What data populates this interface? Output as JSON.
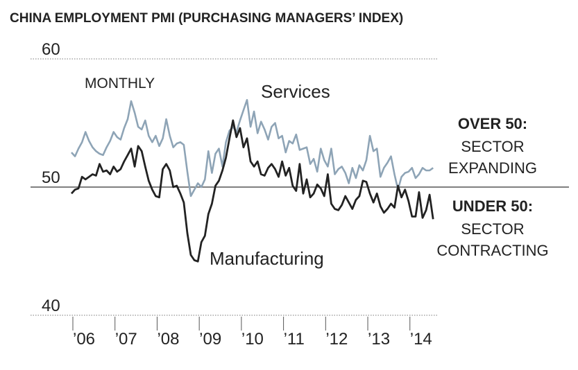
{
  "chart_data": {
    "type": "line",
    "title": "CHINA EMPLOYMENT PMI (PURCHASING MANAGERS’ INDEX)",
    "annotations": [
      "MONTHLY",
      "Services",
      "Manufacturing",
      "OVER 50:",
      "SECTOR",
      "EXPANDING",
      "UNDER 50:",
      "SECTOR",
      "CONTRACTING"
    ],
    "categories": [
      "’06",
      null,
      null,
      null,
      null,
      null,
      null,
      null,
      null,
      null,
      null,
      null,
      "’07",
      null,
      null,
      null,
      null,
      null,
      null,
      null,
      null,
      null,
      null,
      null,
      "’08",
      null,
      null,
      null,
      null,
      null,
      null,
      null,
      null,
      null,
      null,
      null,
      "’09",
      null,
      null,
      null,
      null,
      null,
      null,
      null,
      null,
      null,
      null,
      null,
      "’10",
      null,
      null,
      null,
      null,
      null,
      null,
      null,
      null,
      null,
      null,
      null,
      "’11",
      null,
      null,
      null,
      null,
      null,
      null,
      null,
      null,
      null,
      null,
      null,
      "’12",
      null,
      null,
      null,
      null,
      null,
      null,
      null,
      null,
      null,
      null,
      null,
      "’13",
      null,
      null,
      null,
      null,
      null,
      null,
      null,
      null,
      null,
      null,
      null,
      "’14",
      null,
      null,
      null,
      null,
      null,
      null,
      null
    ],
    "series": [
      {
        "name": "Services",
        "color": "#8ea4b6",
        "values": [
          52.7,
          52.4,
          53.0,
          53.5,
          54.3,
          53.6,
          53.1,
          52.8,
          52.6,
          52.5,
          53.1,
          53.6,
          54.3,
          53.9,
          53.7,
          54.6,
          55.3,
          56.7,
          55.8,
          54.7,
          54.5,
          55.2,
          54.0,
          53.5,
          54.0,
          53.2,
          53.8,
          55.3,
          54.0,
          53.1,
          53.4,
          53.5,
          53.3,
          51.2,
          49.3,
          49.8,
          50.3,
          50.0,
          50.6,
          52.8,
          51.1,
          52.6,
          53.0,
          51.6,
          53.5,
          54.4,
          54.7,
          54.3,
          55.2,
          56.0,
          56.8,
          54.7,
          55.9,
          54.2,
          55.1,
          54.5,
          53.7,
          54.7,
          55.0,
          53.8,
          54.0,
          52.7,
          53.6,
          53.4,
          54.1,
          52.9,
          53.0,
          53.1,
          51.8,
          52.2,
          51.2,
          53.0,
          52.1,
          51.6,
          53.0,
          51.0,
          51.4,
          51.6,
          51.1,
          50.3,
          51.5,
          50.7,
          51.7,
          51.3,
          52.1,
          54.0,
          52.8,
          53.0,
          50.8,
          51.5,
          51.9,
          52.4,
          51.0,
          49.8,
          50.8,
          51.1,
          51.2,
          51.5,
          50.7,
          51.0,
          51.5,
          51.3,
          51.3,
          51.5
        ]
      },
      {
        "name": "Manufacturing",
        "color": "#222222",
        "values": [
          49.5,
          49.8,
          49.9,
          50.8,
          50.6,
          50.8,
          51.0,
          50.9,
          51.8,
          51.2,
          51.3,
          51.0,
          51.6,
          51.2,
          51.4,
          52.0,
          52.5,
          53.0,
          51.6,
          53.2,
          52.8,
          51.6,
          50.5,
          49.8,
          49.3,
          49.2,
          51.4,
          51.8,
          51.3,
          50.0,
          50.1,
          49.5,
          48.8,
          46.4,
          44.7,
          44.3,
          44.2,
          45.7,
          46.2,
          47.9,
          48.7,
          50.1,
          50.5,
          51.3,
          52.3,
          53.8,
          55.2,
          53.9,
          54.6,
          53.1,
          53.8,
          52.0,
          51.6,
          52.0,
          51.0,
          50.9,
          51.5,
          51.8,
          51.4,
          50.8,
          52.0,
          50.9,
          51.5,
          50.1,
          49.7,
          51.8,
          49.5,
          50.6,
          49.2,
          49.5,
          50.2,
          49.9,
          49.3,
          51.0,
          48.7,
          48.3,
          48.2,
          48.6,
          49.3,
          48.8,
          48.3,
          49.0,
          49.3,
          50.5,
          50.4,
          49.5,
          48.8,
          49.5,
          48.5,
          48.0,
          48.3,
          48.7,
          48.4,
          50.1,
          49.2,
          49.8,
          48.9,
          47.7,
          47.7,
          49.6,
          47.6,
          48.2,
          49.4,
          47.5
        ]
      }
    ],
    "ylim": [
      40,
      60
    ],
    "yticks": [
      40,
      50,
      60
    ],
    "grid": true
  }
}
